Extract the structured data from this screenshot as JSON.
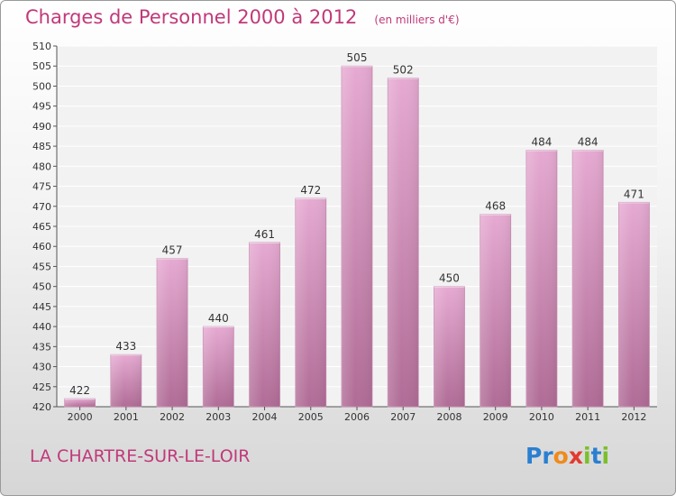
{
  "header": {
    "title": "Charges de Personnel 2000 à 2012",
    "subtitle": "(en milliers d'€)"
  },
  "footer": {
    "commune": "LA CHARTRE-SUR-LE-LOIR",
    "logo_text": "Proxiti",
    "logo_letters": [
      {
        "char": "P",
        "color": "#2a7fd0"
      },
      {
        "char": "r",
        "color": "#2a7fd0"
      },
      {
        "char": "o",
        "color": "#f08a1c"
      },
      {
        "char": "x",
        "color": "#e23b2e"
      },
      {
        "char": "i",
        "color": "#7bbf2a"
      },
      {
        "char": "t",
        "color": "#2a7fd0"
      },
      {
        "char": "i",
        "color": "#7bbf2a"
      }
    ]
  },
  "colors": {
    "bar_top": "#e6aad2",
    "bar_bottom": "#b06c96",
    "title": "#c0397a",
    "plot_bg": "#f2f2f2",
    "grid": "#ffffff"
  },
  "chart_data": {
    "type": "bar",
    "categories": [
      "2000",
      "2001",
      "2002",
      "2003",
      "2004",
      "2005",
      "2006",
      "2007",
      "2008",
      "2009",
      "2010",
      "2011",
      "2012"
    ],
    "values": [
      422,
      433,
      457,
      440,
      461,
      472,
      505,
      502,
      450,
      468,
      484,
      484,
      471
    ],
    "ylim": [
      420,
      510
    ],
    "ytick_step": 5,
    "title": "Charges de Personnel 2000 à 2012",
    "xlabel": "",
    "ylabel": "",
    "grid": true,
    "data_labels": true
  }
}
